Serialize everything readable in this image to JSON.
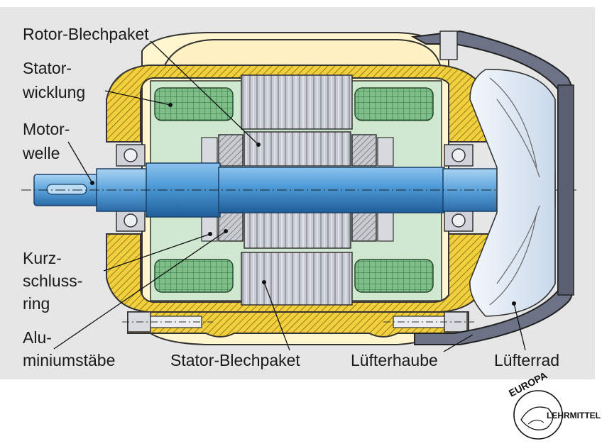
{
  "labels": {
    "rotor_blechpaket": "Rotor-Blechpaket",
    "statorwicklung": [
      "Stator-",
      "wicklung"
    ],
    "motorwelle": [
      "Motor-",
      "welle"
    ],
    "kurzschlussring": [
      "Kurz-",
      "schluss-",
      "ring"
    ],
    "aluminiumstaebe": [
      "Alu-",
      "miniumstäbe"
    ],
    "stator_blechpaket": "Stator-Blechpaket",
    "luefterhaube": "Lüfterhaube",
    "luefterrad": "Lüfterrad"
  },
  "logo": {
    "top": "EUROPA",
    "side": "LEHRMITTEL"
  },
  "colors": {
    "background": "#e6e6e6",
    "housing": "#f2cf3c",
    "housing_light": "#fff5cf",
    "winding": "#7fbf8a",
    "winding_bg": "#cfe8cf",
    "shaft": "#3f8fd0",
    "rotor": "#d0d3d8",
    "fan_cover": "#6c7386",
    "fan": "#dfe9f4"
  }
}
